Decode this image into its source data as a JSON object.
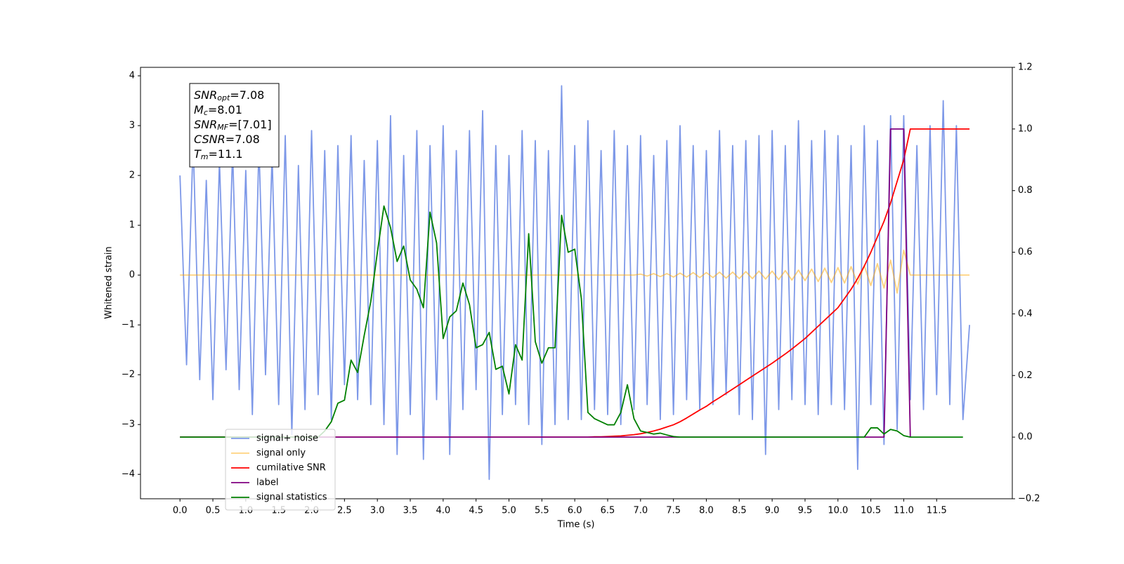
{
  "chart_data": {
    "type": "line",
    "xlabel": "Time (s)",
    "ylabel": "Whitened strain",
    "xlim": [
      -0.6,
      12.65
    ],
    "ylim": [
      -4.49,
      4.17
    ],
    "y2lim": [
      -0.2,
      1.2
    ],
    "xticks": [
      {
        "value": 0,
        "label": "0.0"
      },
      0.5,
      {
        "value": 1,
        "label": "1.0"
      },
      1.5,
      {
        "value": 2,
        "label": "2.0"
      },
      2.5,
      {
        "value": 3,
        "label": "3.0"
      },
      3.5,
      {
        "value": 4,
        "label": "4.0"
      },
      4.5,
      {
        "value": 5,
        "label": "5.0"
      },
      5.5,
      {
        "value": 6,
        "label": "6.0"
      },
      6.5,
      {
        "value": 7,
        "label": "7.0"
      },
      7.5,
      {
        "value": 8,
        "label": "8.0"
      },
      8.5,
      {
        "value": 9,
        "label": "9.0"
      },
      9.5,
      {
        "value": 10,
        "label": "10.0"
      },
      10.5,
      {
        "value": 11,
        "label": "11.0"
      },
      11.5
    ],
    "yticks": [
      {
        "value": -4,
        "label": "−4"
      },
      {
        "value": -3,
        "label": "−3"
      },
      {
        "value": -2,
        "label": "−2"
      },
      {
        "value": -1,
        "label": "−1"
      },
      0,
      1,
      2,
      3,
      4
    ],
    "y2ticks": [
      {
        "value": -0.2,
        "label": "−0.2"
      },
      {
        "value": 0,
        "label": "0.0"
      },
      0.2,
      0.4,
      0.6,
      0.8,
      {
        "value": 1,
        "label": "1.0"
      },
      1.2
    ],
    "legend": "lower left",
    "annotations": [
      {
        "symbol": "SNR",
        "sub": "opt",
        "text": "=7.08"
      },
      {
        "symbol": "M",
        "sub": "c",
        "text": "=8.01"
      },
      {
        "symbol": "SNR",
        "sub": "MF",
        "text": "=[7.01]"
      },
      {
        "symbol": "CSNR",
        "sub": "",
        "text": "=7.08"
      },
      {
        "symbol": "T",
        "sub": "m",
        "text": "=11.1"
      }
    ],
    "x": [
      0,
      0.1,
      0.2,
      0.3,
      0.4,
      0.5,
      0.6,
      0.7,
      0.8,
      0.9,
      1,
      1.1,
      1.2,
      1.3,
      1.4,
      1.5,
      1.6,
      1.7,
      1.8,
      1.9,
      2,
      2.1,
      2.2,
      2.3,
      2.4,
      2.5,
      2.6,
      2.7,
      2.8,
      2.9,
      3,
      3.1,
      3.2,
      3.3,
      3.4,
      3.5,
      3.6,
      3.7,
      3.8,
      3.9,
      4,
      4.1,
      4.2,
      4.3,
      4.4,
      4.5,
      4.6,
      4.7,
      4.8,
      4.9,
      5,
      5.1,
      5.2,
      5.3,
      5.4,
      5.5,
      5.6,
      5.7,
      5.8,
      5.9,
      6,
      6.1,
      6.2,
      6.3,
      6.4,
      6.5,
      6.6,
      6.7,
      6.8,
      6.9,
      7,
      7.1,
      7.2,
      7.3,
      7.4,
      7.5,
      7.6,
      7.7,
      7.8,
      7.9,
      8,
      8.1,
      8.2,
      8.3,
      8.4,
      8.5,
      8.6,
      8.7,
      8.8,
      8.9,
      9,
      9.1,
      9.2,
      9.3,
      9.4,
      9.5,
      9.6,
      9.7,
      9.8,
      9.9,
      10,
      10.1,
      10.2,
      10.3,
      10.4,
      10.5,
      10.6,
      10.7,
      10.8,
      10.9,
      11,
      11.1,
      11.2,
      11.3,
      11.4,
      11.5,
      11.6,
      11.7,
      11.8,
      11.9,
      12
    ],
    "series": [
      {
        "name": "signal+ noise",
        "color": "#6f8de6",
        "opacity": 0.9,
        "values": [
          2.0,
          -1.8,
          2.7,
          -2.1,
          1.9,
          -2.5,
          2.3,
          -1.9,
          2.5,
          -2.3,
          2.1,
          -2.8,
          2.6,
          -2.0,
          2.4,
          -2.6,
          2.8,
          -3.2,
          2.2,
          -2.7,
          2.9,
          -2.4,
          2.5,
          -2.9,
          2.6,
          -2.2,
          2.8,
          -2.5,
          2.3,
          -2.6,
          2.7,
          -3.0,
          3.2,
          -3.6,
          2.4,
          -2.8,
          2.9,
          -3.7,
          2.6,
          -2.5,
          3.0,
          -3.6,
          2.5,
          -2.7,
          2.9,
          -2.3,
          3.3,
          -4.1,
          2.6,
          -2.8,
          2.4,
          -2.6,
          2.9,
          -3.0,
          2.7,
          -3.4,
          2.5,
          -3.0,
          3.8,
          -2.9,
          2.6,
          -2.9,
          3.1,
          -2.7,
          2.5,
          -2.8,
          2.9,
          -3.0,
          2.6,
          -2.7,
          2.8,
          -2.6,
          2.4,
          -2.9,
          2.7,
          -2.8,
          3.0,
          -2.5,
          2.6,
          -2.7,
          2.5,
          -2.6,
          2.9,
          -2.4,
          2.6,
          -2.8,
          2.7,
          -2.9,
          2.8,
          -3.6,
          2.9,
          -2.7,
          2.6,
          -2.5,
          3.1,
          -2.6,
          2.7,
          -2.8,
          2.9,
          -2.6,
          2.8,
          -2.7,
          2.6,
          -3.9,
          3.0,
          -2.6,
          2.7,
          -3.4,
          3.2,
          -3.1,
          3.2,
          -2.5,
          2.6,
          -2.7,
          3.0,
          -2.4,
          3.5,
          -2.6,
          3.0,
          -2.9,
          -1.0
        ]
      },
      {
        "name": "signal only",
        "color": "#ffa500",
        "opacity": 0.5,
        "values": [
          0,
          0,
          0,
          0,
          0,
          0,
          0,
          0,
          0,
          0,
          0,
          0,
          0,
          0,
          0,
          0,
          0,
          0,
          0,
          0,
          0,
          0,
          0,
          0,
          0,
          0,
          0,
          0,
          0,
          0,
          0,
          0,
          0,
          0,
          0,
          0,
          0,
          0,
          0,
          0,
          0,
          0,
          0,
          0,
          0,
          0,
          0,
          0,
          0,
          0,
          0,
          0,
          0,
          0,
          0,
          0,
          0,
          0,
          0,
          0,
          0,
          0,
          0,
          0,
          0,
          0,
          0,
          0,
          0,
          0,
          0.02,
          -0.02,
          0.03,
          -0.03,
          0.03,
          -0.04,
          0.04,
          -0.04,
          0.05,
          -0.05,
          0.05,
          -0.05,
          0.06,
          -0.06,
          0.06,
          -0.07,
          0.07,
          -0.07,
          0.08,
          -0.08,
          0.08,
          -0.09,
          0.09,
          -0.1,
          0.1,
          -0.11,
          0.12,
          -0.13,
          0.14,
          -0.15,
          0.15,
          -0.16,
          0.17,
          -0.18,
          0.19,
          -0.21,
          0.23,
          -0.26,
          0.3,
          -0.36,
          0.5,
          0,
          0,
          0,
          0,
          0,
          0,
          0,
          0,
          0,
          0
        ]
      },
      {
        "name": "cumilative SNR",
        "color": "#ff0000",
        "axis": "y2",
        "values": [
          0,
          0,
          0,
          0,
          0,
          0,
          0,
          0,
          0,
          0,
          0,
          0,
          0,
          0,
          0,
          0,
          0,
          0,
          0,
          0,
          0,
          0,
          0,
          0,
          0,
          0,
          0,
          0,
          0,
          0,
          0,
          0,
          0,
          0,
          0,
          0,
          0,
          0,
          0,
          0,
          0,
          0,
          0,
          0,
          0,
          0,
          0,
          0,
          0,
          0,
          0,
          0,
          0,
          0,
          0,
          0,
          0,
          0,
          0,
          0,
          0,
          0,
          0,
          0.001,
          0.001,
          0.002,
          0.003,
          0.004,
          0.006,
          0.008,
          0.011,
          0.015,
          0.02,
          0.026,
          0.033,
          0.04,
          0.05,
          0.062,
          0.075,
          0.088,
          0.1,
          0.115,
          0.128,
          0.142,
          0.156,
          0.17,
          0.184,
          0.198,
          0.212,
          0.226,
          0.24,
          0.255,
          0.27,
          0.286,
          0.303,
          0.32,
          0.34,
          0.36,
          0.38,
          0.4,
          0.42,
          0.45,
          0.48,
          0.515,
          0.555,
          0.6,
          0.65,
          0.7,
          0.76,
          0.83,
          0.9,
          1,
          1,
          1,
          1,
          1,
          1,
          1,
          1,
          1,
          1
        ]
      },
      {
        "name": "label",
        "color": "#800080",
        "axis": "y2",
        "values": [
          0,
          0,
          0,
          0,
          0,
          0,
          0,
          0,
          0,
          0,
          0,
          0,
          0,
          0,
          0,
          0,
          0,
          0,
          0,
          0,
          0,
          0,
          0,
          0,
          0,
          0,
          0,
          0,
          0,
          0,
          0,
          0,
          0,
          0,
          0,
          0,
          0,
          0,
          0,
          0,
          0,
          0,
          0,
          0,
          0,
          0,
          0,
          0,
          0,
          0,
          0,
          0,
          0,
          0,
          0,
          0,
          0,
          0,
          0,
          0,
          0,
          0,
          0,
          0,
          0,
          0,
          0,
          0,
          0,
          0,
          0,
          0,
          0,
          0,
          0,
          0,
          0,
          0,
          0,
          0,
          0,
          0,
          0,
          0,
          0,
          0,
          0,
          0,
          0,
          0,
          0,
          0,
          0,
          0,
          0,
          0,
          0,
          0,
          0,
          0,
          0,
          0,
          0,
          0,
          0,
          0,
          0,
          0,
          1,
          1,
          1,
          0,
          null,
          null,
          null,
          null,
          null,
          null,
          null,
          null,
          null
        ]
      },
      {
        "name": "signal statistics",
        "color": "#008000",
        "axis": "y2",
        "values": [
          0,
          0,
          0,
          0,
          0,
          0,
          0,
          0,
          0,
          0,
          0,
          0,
          0,
          0,
          0,
          0,
          0,
          0,
          0,
          0,
          0,
          0,
          0.02,
          0.05,
          0.11,
          0.12,
          0.25,
          0.21,
          0.33,
          0.44,
          0.6,
          0.75,
          0.68,
          0.57,
          0.62,
          0.51,
          0.48,
          0.42,
          0.73,
          0.63,
          0.32,
          0.39,
          0.41,
          0.5,
          0.43,
          0.29,
          0.3,
          0.34,
          0.22,
          0.23,
          0.14,
          0.3,
          0.25,
          0.66,
          0.31,
          0.24,
          0.29,
          0.29,
          0.72,
          0.6,
          0.61,
          0.45,
          0.08,
          0.06,
          0.05,
          0.04,
          0.04,
          0.08,
          0.17,
          0.06,
          0.02,
          0.015,
          0.01,
          0.013,
          0.007,
          0.002,
          0,
          0,
          0,
          0,
          0,
          0,
          0,
          0,
          0,
          0,
          0,
          0,
          0,
          0,
          0,
          0,
          0,
          0,
          0,
          0,
          0,
          0,
          0,
          0,
          0,
          0,
          0,
          0,
          0,
          0.03,
          0.03,
          0.01,
          0.025,
          0.02,
          0.005,
          0,
          0,
          0,
          0,
          0,
          0,
          0,
          0,
          0,
          null
        ]
      }
    ]
  }
}
